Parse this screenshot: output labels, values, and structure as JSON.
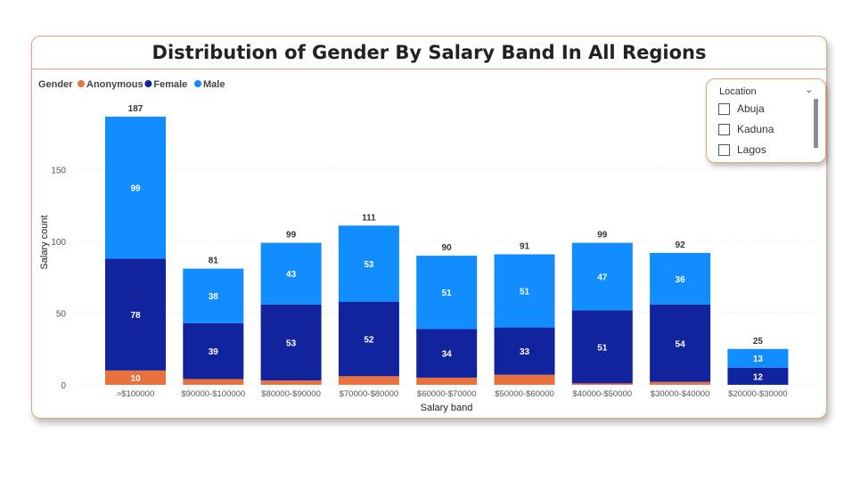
{
  "title": "Distribution of Gender By Salary Band In All Regions",
  "legend": {
    "title": "Gender",
    "items": [
      {
        "label": "Anonymous",
        "color": "#e8713d"
      },
      {
        "label": "Female",
        "color": "#12239e"
      },
      {
        "label": "Male",
        "color": "#118dff"
      }
    ]
  },
  "slicer": {
    "title": "Location",
    "items": [
      "Abuja",
      "Kaduna",
      "Lagos"
    ]
  },
  "chart_data": {
    "type": "bar",
    "stacked": true,
    "xlabel": "Salary band",
    "ylabel": "Salary count",
    "ylim": [
      0,
      190
    ],
    "yticks": [
      0,
      50,
      100,
      150
    ],
    "grid": true,
    "legend_position": "top-left",
    "categories": [
      ">$100000",
      "$90000-$100000",
      "$80000-$90000",
      "$70000-$80000",
      "$60000-$70000",
      "$50000-$60000",
      "$40000-$50000",
      "$30000-$40000",
      "$20000-$30000"
    ],
    "series": [
      {
        "name": "Anonymous",
        "color": "#e8713d",
        "values": [
          10,
          4,
          3,
          6,
          5,
          7,
          1,
          2,
          0
        ],
        "labels": [
          "10",
          "",
          "",
          "",
          "",
          "",
          "",
          "",
          ""
        ]
      },
      {
        "name": "Female",
        "color": "#12239e",
        "values": [
          78,
          39,
          53,
          52,
          34,
          33,
          51,
          54,
          12
        ],
        "labels": [
          "78",
          "39",
          "53",
          "52",
          "34",
          "33",
          "51",
          "54",
          "12"
        ]
      },
      {
        "name": "Male",
        "color": "#118dff",
        "values": [
          99,
          38,
          43,
          53,
          51,
          51,
          47,
          36,
          13
        ],
        "labels": [
          "99",
          "38",
          "43",
          "53",
          "51",
          "51",
          "47",
          "36",
          "13"
        ]
      }
    ],
    "totals": [
      187,
      81,
      99,
      111,
      90,
      91,
      99,
      92,
      25
    ]
  }
}
